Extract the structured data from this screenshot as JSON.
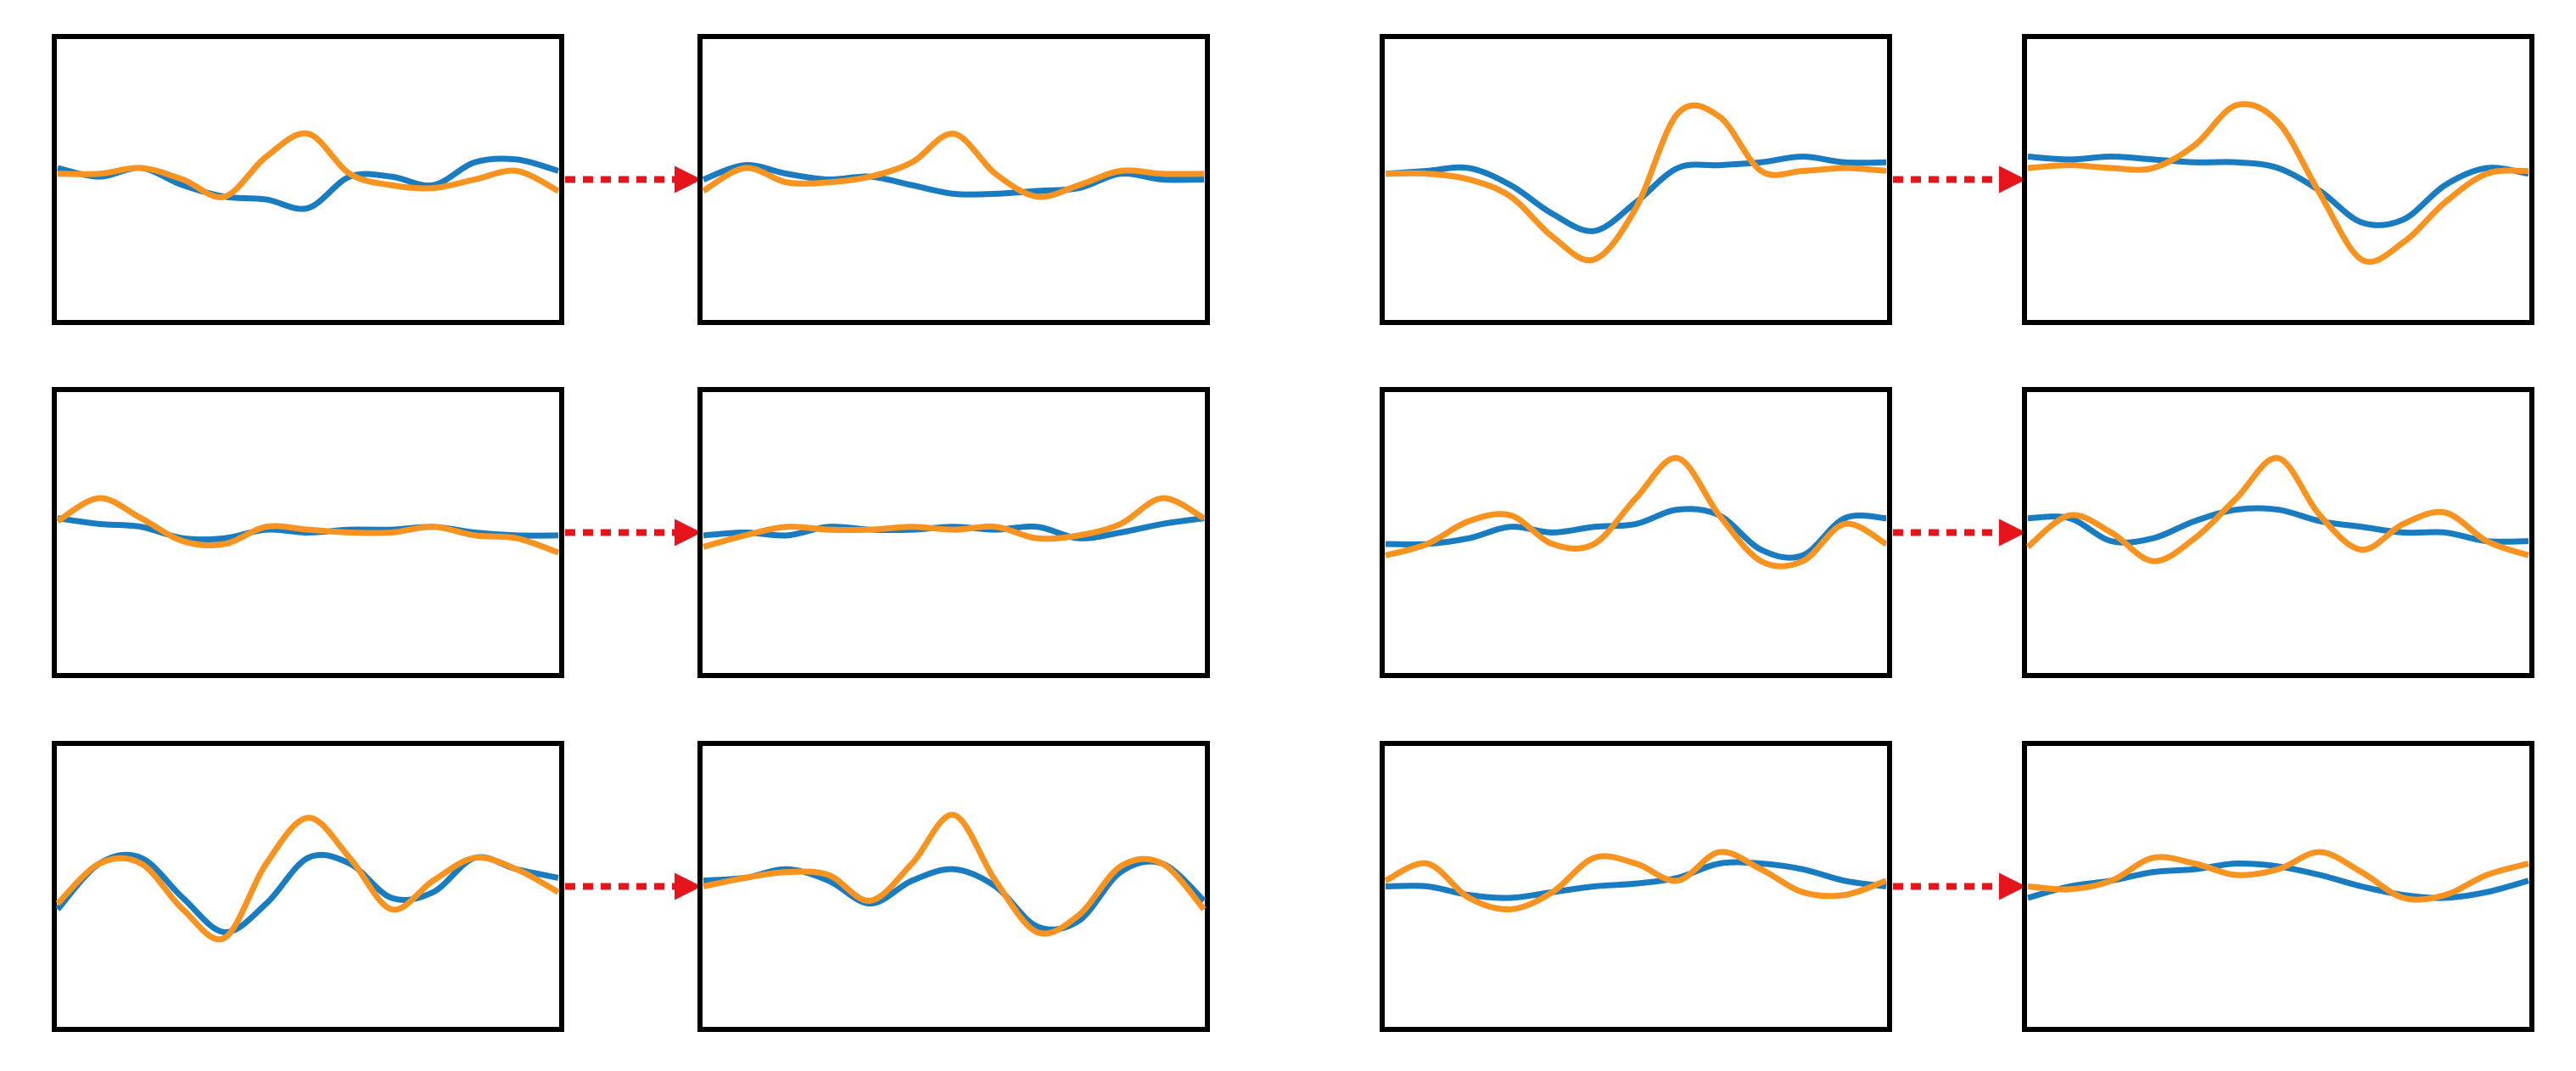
{
  "panels": [
    {
      "series": [
        {
          "color": "#1a7cc0",
          "values": [
            54,
            51,
            54,
            48,
            44,
            43,
            40,
            51,
            51,
            48,
            56,
            57,
            53
          ]
        },
        {
          "color": "#f7931e",
          "values": [
            52,
            52,
            54,
            50,
            44,
            58,
            66,
            52,
            48,
            47,
            50,
            53,
            46
          ]
        }
      ]
    },
    {
      "series": [
        {
          "color": "#1a7cc0",
          "values": [
            50,
            55,
            52,
            50,
            51,
            48,
            45,
            45,
            46,
            47,
            52,
            50,
            50
          ]
        },
        {
          "color": "#f7931e",
          "values": [
            46,
            54,
            49,
            49,
            51,
            56,
            66,
            52,
            44,
            48,
            53,
            52,
            52
          ]
        }
      ]
    },
    {
      "series": [
        {
          "color": "#1a7cc0",
          "values": [
            52,
            53,
            54,
            48,
            38,
            32,
            42,
            54,
            55,
            56,
            58,
            56,
            56
          ]
        },
        {
          "color": "#f7931e",
          "values": [
            52,
            52,
            50,
            44,
            30,
            22,
            40,
            73,
            72,
            53,
            53,
            54,
            53
          ]
        }
      ]
    },
    {
      "series": [
        {
          "color": "#1a7cc0",
          "values": [
            58,
            57,
            58,
            57,
            56,
            56,
            54,
            46,
            35,
            36,
            48,
            54,
            52
          ]
        },
        {
          "color": "#f7931e",
          "values": [
            54,
            55,
            54,
            54,
            62,
            76,
            70,
            45,
            22,
            28,
            42,
            52,
            53
          ]
        }
      ]
    },
    {
      "series": [
        {
          "color": "#1a7cc0",
          "values": [
            55,
            53,
            52,
            48,
            48,
            51,
            50,
            51,
            51,
            52,
            50,
            49,
            49
          ]
        },
        {
          "color": "#f7931e",
          "values": [
            54,
            62,
            55,
            47,
            46,
            52,
            51,
            50,
            50,
            52,
            49,
            48,
            43
          ]
        }
      ]
    },
    {
      "series": [
        {
          "color": "#1a7cc0",
          "values": [
            49,
            50,
            49,
            52,
            51,
            51,
            52,
            51,
            52,
            48,
            50,
            53,
            55
          ]
        },
        {
          "color": "#f7931e",
          "values": [
            45,
            49,
            52,
            51,
            51,
            52,
            51,
            52,
            48,
            49,
            53,
            62,
            55
          ]
        }
      ]
    },
    {
      "series": [
        {
          "color": "#1a7cc0",
          "values": [
            46,
            46,
            48,
            52,
            50,
            52,
            53,
            58,
            56,
            44,
            42,
            55,
            55
          ]
        },
        {
          "color": "#f7931e",
          "values": [
            42,
            46,
            54,
            56,
            46,
            46,
            62,
            76,
            56,
            40,
            40,
            53,
            46
          ]
        }
      ]
    },
    {
      "series": [
        {
          "color": "#1a7cc0",
          "values": [
            55,
            55,
            47,
            48,
            54,
            58,
            58,
            54,
            52,
            50,
            50,
            47,
            47
          ]
        },
        {
          "color": "#f7931e",
          "values": [
            45,
            56,
            50,
            40,
            48,
            62,
            76,
            56,
            44,
            53,
            57,
            47,
            42
          ]
        }
      ]
    },
    {
      "series": [
        {
          "color": "#1a7cc0",
          "values": [
            42,
            58,
            60,
            46,
            34,
            44,
            60,
            58,
            46,
            48,
            60,
            56,
            53
          ]
        },
        {
          "color": "#f7931e",
          "values": [
            44,
            58,
            58,
            42,
            32,
            58,
            74,
            60,
            42,
            52,
            60,
            56,
            48
          ]
        }
      ]
    },
    {
      "series": [
        {
          "color": "#1a7cc0",
          "values": [
            52,
            53,
            56,
            52,
            44,
            52,
            56,
            50,
            36,
            38,
            55,
            58,
            45
          ]
        },
        {
          "color": "#f7931e",
          "values": [
            50,
            53,
            55,
            54,
            45,
            58,
            75,
            52,
            34,
            40,
            57,
            58,
            42
          ]
        }
      ]
    },
    {
      "series": [
        {
          "color": "#1a7cc0",
          "values": [
            50,
            50,
            47,
            46,
            48,
            50,
            51,
            53,
            58,
            58,
            56,
            52,
            50
          ]
        },
        {
          "color": "#f7931e",
          "values": [
            52,
            58,
            46,
            42,
            48,
            60,
            58,
            52,
            62,
            56,
            48,
            47,
            52
          ]
        }
      ]
    },
    {
      "series": [
        {
          "color": "#1a7cc0",
          "values": [
            46,
            50,
            52,
            55,
            56,
            58,
            57,
            54,
            50,
            47,
            46,
            48,
            52
          ]
        },
        {
          "color": "#f7931e",
          "values": [
            50,
            49,
            52,
            60,
            58,
            54,
            56,
            62,
            55,
            46,
            47,
            54,
            58
          ]
        }
      ]
    }
  ]
}
